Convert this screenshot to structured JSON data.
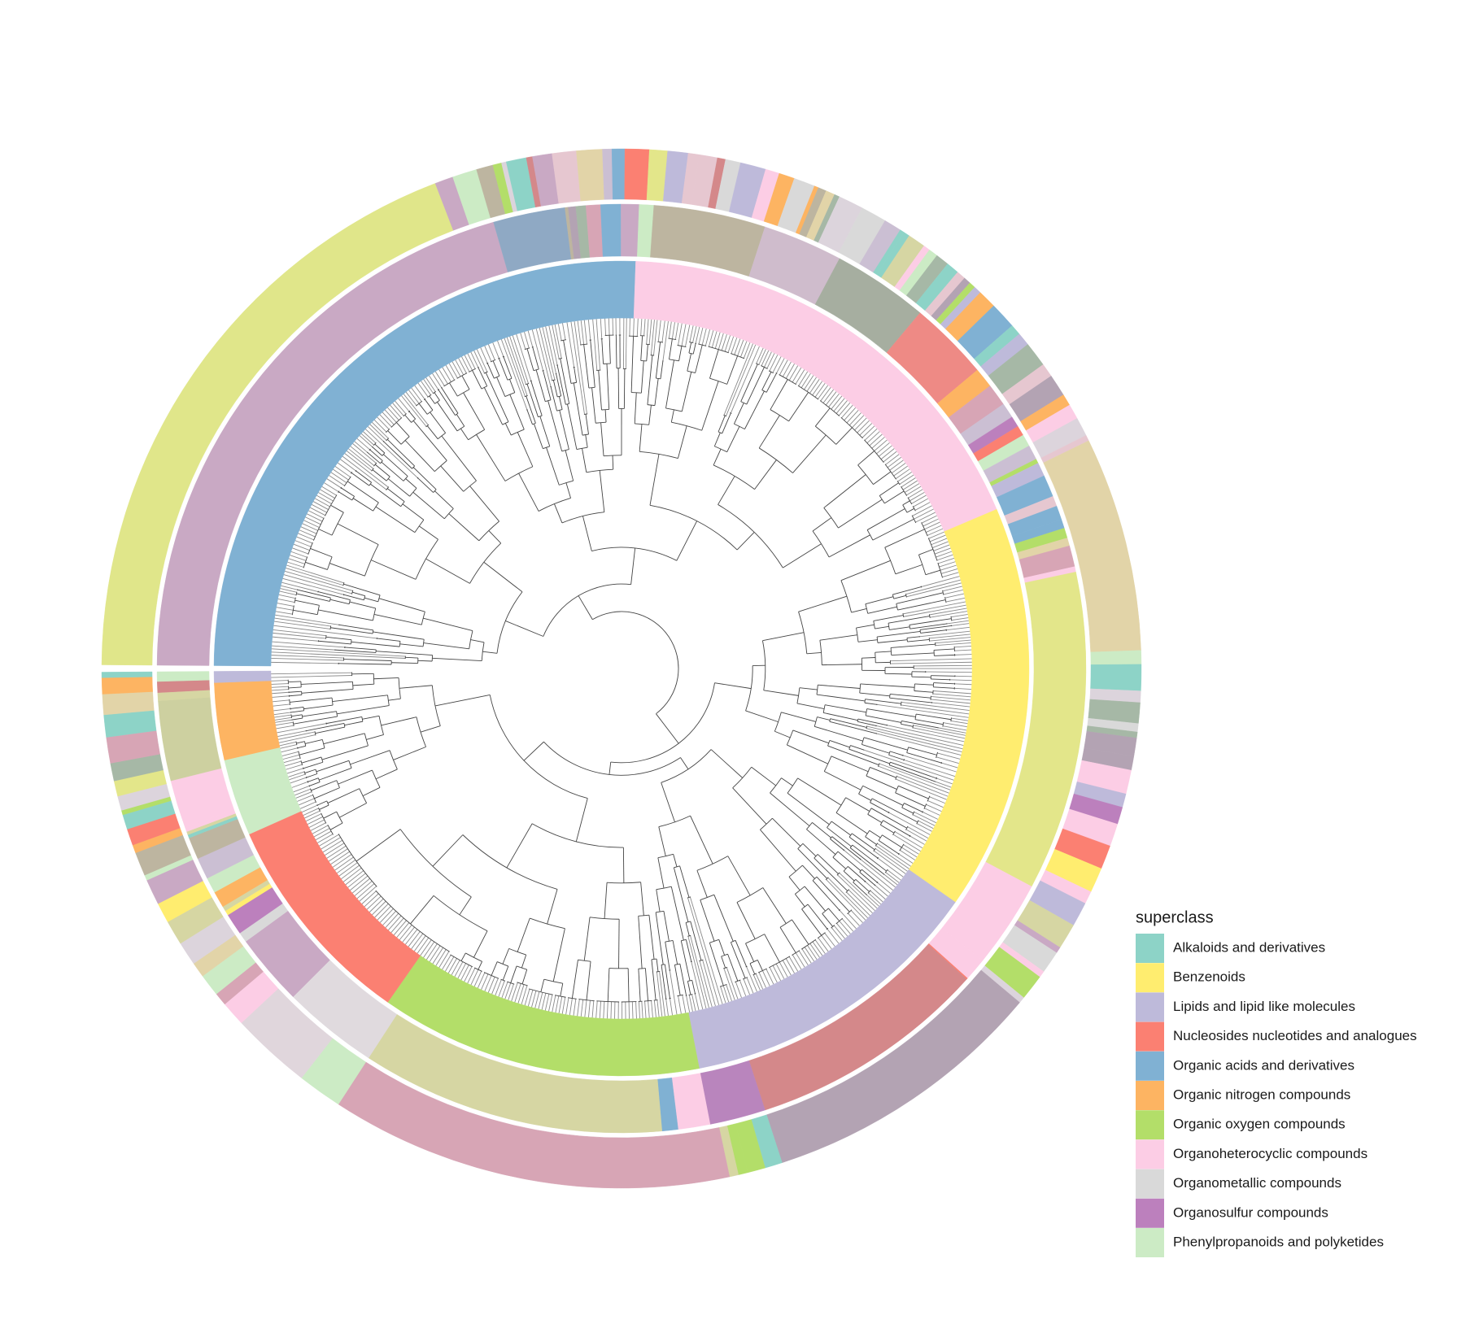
{
  "legend": {
    "title": "superclass",
    "items": [
      {
        "label": "Alkaloids and derivatives",
        "color": "#8dd3c7"
      },
      {
        "label": "Benzenoids",
        "color": "#ffed6f"
      },
      {
        "label": "Lipids and lipid like molecules",
        "color": "#bebada"
      },
      {
        "label": "Nucleosides nucleotides and analogues",
        "color": "#fb8072"
      },
      {
        "label": "Organic acids and derivatives",
        "color": "#80b1d3"
      },
      {
        "label": "Organic nitrogen compounds",
        "color": "#fdb462"
      },
      {
        "label": "Organic oxygen compounds",
        "color": "#b3de69"
      },
      {
        "label": "Organoheterocyclic compounds",
        "color": "#fccde5"
      },
      {
        "label": "Organometallic compounds",
        "color": "#d9d9d9"
      },
      {
        "label": "Organosulfur compounds",
        "color": "#bc80bd"
      },
      {
        "label": "Phenylpropanoids and polyketides",
        "color": "#ccebc5"
      }
    ]
  }
}
